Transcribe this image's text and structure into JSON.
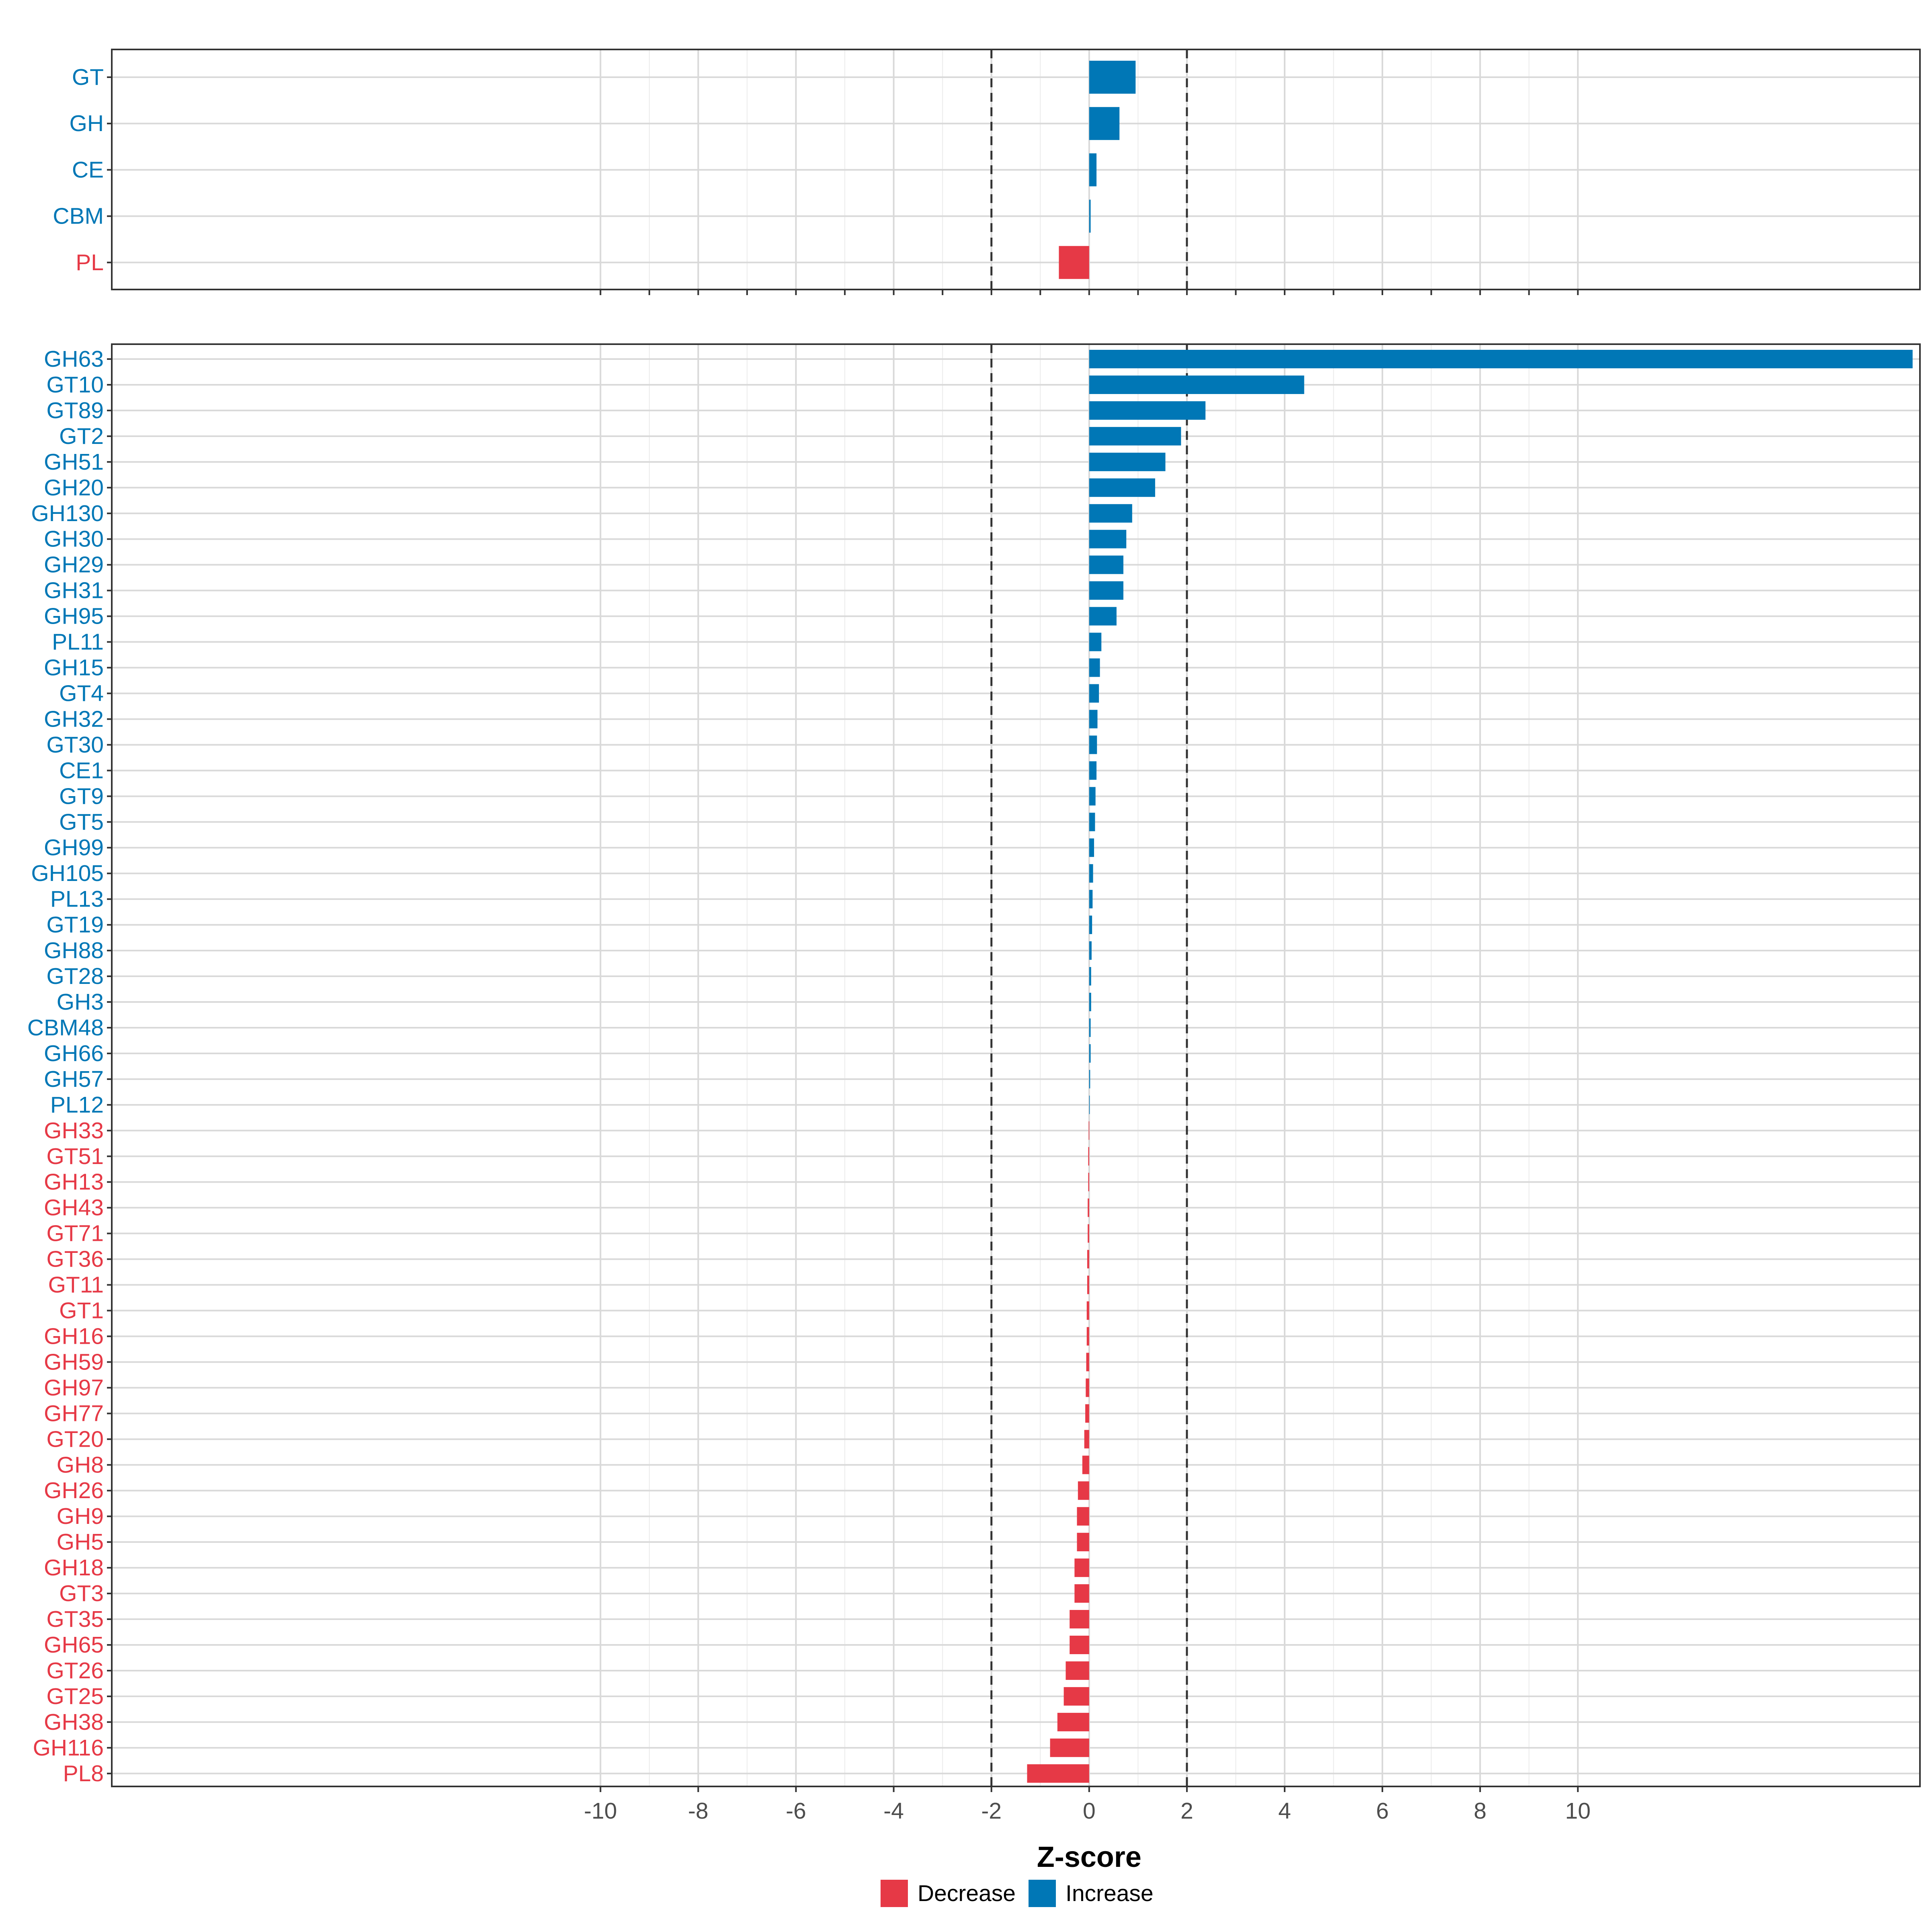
{
  "chart_data": {
    "type": "bar",
    "orientation": "horizontal",
    "xlabel": "Z-score",
    "xlim": [
      -20,
      17
    ],
    "x_ticks": [
      -10,
      -8,
      -6,
      -4,
      -2,
      0,
      2,
      4,
      6,
      8,
      10
    ],
    "reference_lines": [
      -2,
      2
    ],
    "grid": true,
    "legend_placement": "bottom",
    "legend": [
      {
        "name": "Decrease",
        "color": "#E63946"
      },
      {
        "name": "Increase",
        "color": "#0077B6"
      }
    ],
    "colors": {
      "Decrease": "#E63946",
      "Increase": "#0077B6"
    },
    "panels": [
      {
        "categories": [
          "GT",
          "GH",
          "CE",
          "CBM",
          "PL"
        ],
        "values": [
          0.95,
          0.62,
          0.15,
          0.03,
          -0.62
        ]
      },
      {
        "categories": [
          "GH63",
          "GT10",
          "GT89",
          "GT2",
          "GH51",
          "GH20",
          "GH130",
          "GH30",
          "GH29",
          "GH31",
          "GH95",
          "PL11",
          "GH15",
          "GT4",
          "GH32",
          "GT30",
          "CE1",
          "GT9",
          "GT5",
          "GH99",
          "GH105",
          "PL13",
          "GT19",
          "GH88",
          "GT28",
          "GH3",
          "CBM48",
          "GH66",
          "GH57",
          "PL12",
          "GH33",
          "GT51",
          "GH13",
          "GH43",
          "GT71",
          "GT36",
          "GT11",
          "GT1",
          "GH16",
          "GH59",
          "GH97",
          "GH77",
          "GT20",
          "GH8",
          "GH26",
          "GH9",
          "GH5",
          "GH18",
          "GT3",
          "GT35",
          "GH65",
          "GT26",
          "GT25",
          "GH38",
          "GH116",
          "PL8"
        ],
        "values": [
          16.85,
          4.4,
          2.38,
          1.88,
          1.56,
          1.35,
          0.88,
          0.76,
          0.7,
          0.7,
          0.56,
          0.25,
          0.22,
          0.2,
          0.17,
          0.16,
          0.15,
          0.13,
          0.12,
          0.1,
          0.08,
          0.07,
          0.06,
          0.05,
          0.04,
          0.04,
          0.03,
          0.03,
          0.02,
          0.01,
          -0.01,
          -0.02,
          -0.02,
          -0.03,
          -0.03,
          -0.04,
          -0.04,
          -0.05,
          -0.05,
          -0.06,
          -0.07,
          -0.08,
          -0.1,
          -0.14,
          -0.23,
          -0.25,
          -0.25,
          -0.3,
          -0.3,
          -0.4,
          -0.4,
          -0.48,
          -0.52,
          -0.65,
          -0.8,
          -1.27
        ]
      }
    ]
  }
}
